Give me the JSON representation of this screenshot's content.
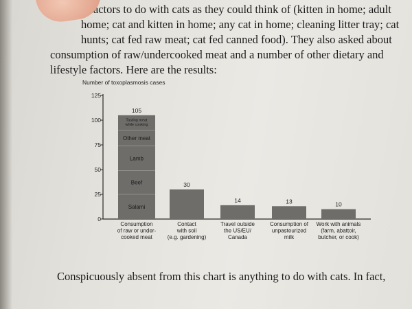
{
  "text": {
    "line1": "y factors to do with cats as they could think of (kitten in home; adult",
    "line2": "home; cat and kitten in home; any cat in home; cleaning litter tray; cat",
    "line3": "hunts; cat fed raw meat; cat fed canned food). They also asked about",
    "line4": "consumption of raw/undercooked meat and a number of other dietary and",
    "line5": "lifestyle factors. Here are the results:",
    "footer": "Conspicuously absent from this chart is anything to do with cats. In fact,"
  },
  "chart_data": {
    "type": "bar",
    "title": "Number of toxoplasmosis cases",
    "ylim": [
      0,
      125
    ],
    "yticks": [
      "0",
      "25",
      "50",
      "75",
      "100",
      "125"
    ],
    "categories": [
      [
        "Consumption",
        "of raw or under-",
        "cooked meat"
      ],
      [
        "Contact",
        "with soil",
        "(e.g. gardening)"
      ],
      [
        "Travel outside",
        "the US/EU/",
        "Canada"
      ],
      [
        "Consumption of",
        "unpasteurized",
        "milk"
      ],
      [
        "Work with animals",
        "(farm, abattoir,",
        "butcher, or cook)"
      ]
    ],
    "values": [
      105,
      30,
      14,
      13,
      10
    ],
    "value_labels": [
      "105",
      "30",
      "14",
      "13",
      "10"
    ],
    "stacked_first_bar": [
      {
        "name": "Salami",
        "value": 25
      },
      {
        "name": "Beef",
        "value": 24
      },
      {
        "name": "Lamb",
        "value": 25
      },
      {
        "name": "Other meat",
        "value": 16
      },
      {
        "name": "Tasting meat while cooking",
        "value": 15
      }
    ],
    "colors": {
      "bar": "#6e6d6a",
      "segment_line": "#9a9995",
      "axis": "#2a2a2a",
      "text": "#222222"
    }
  }
}
